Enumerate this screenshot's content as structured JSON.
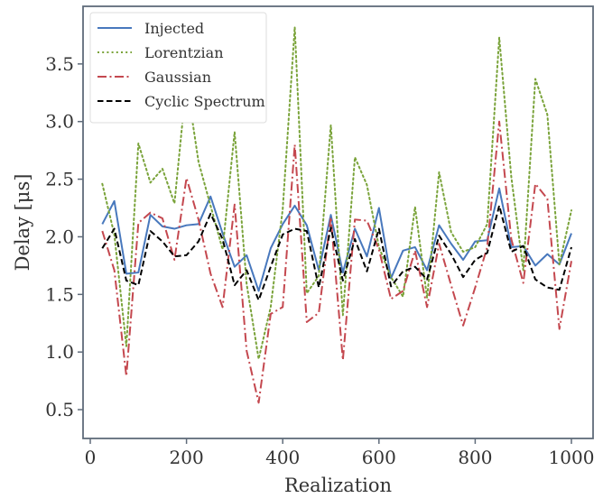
{
  "chart_data": {
    "type": "line",
    "xlabel": "Realization",
    "ylabel": "Delay [μs]",
    "xlim": [
      -15,
      1045
    ],
    "ylim": [
      0.25,
      4.0
    ],
    "xticks": [
      0,
      200,
      400,
      600,
      800,
      1000
    ],
    "yticks": [
      0.5,
      1.0,
      1.5,
      2.0,
      2.5,
      3.0,
      3.5
    ],
    "xtick_labels": [
      "0",
      "200",
      "400",
      "600",
      "800",
      "1000"
    ],
    "ytick_labels": [
      "0.5",
      "1.0",
      "1.5",
      "2.0",
      "2.5",
      "3.0",
      "3.5"
    ],
    "grid": false,
    "legend_position": "top-left",
    "x": [
      25,
      50,
      75,
      100,
      125,
      150,
      175,
      200,
      225,
      250,
      275,
      300,
      325,
      350,
      375,
      400,
      425,
      450,
      475,
      500,
      525,
      550,
      575,
      600,
      625,
      650,
      675,
      700,
      725,
      750,
      775,
      800,
      825,
      850,
      875,
      900,
      925,
      950,
      975,
      1000
    ],
    "series": [
      {
        "name": "Injected",
        "color": "#4878bd",
        "dash": "solid",
        "values": [
          2.11,
          2.31,
          1.68,
          1.69,
          2.19,
          2.09,
          2.07,
          2.1,
          2.11,
          2.35,
          2.03,
          1.74,
          1.84,
          1.53,
          1.9,
          2.11,
          2.27,
          2.1,
          1.71,
          2.19,
          1.69,
          2.07,
          1.83,
          2.25,
          1.64,
          1.88,
          1.91,
          1.71,
          2.1,
          1.94,
          1.8,
          1.96,
          1.97,
          2.42,
          1.91,
          1.92,
          1.75,
          1.85,
          1.76,
          2.03
        ]
      },
      {
        "name": "Lorentzian",
        "color": "#7aa33a",
        "dash": "dotted",
        "values": [
          2.46,
          2.02,
          1.05,
          2.81,
          2.47,
          2.59,
          2.29,
          3.35,
          2.65,
          2.27,
          1.89,
          2.91,
          1.59,
          0.94,
          1.39,
          2.24,
          3.82,
          1.51,
          1.66,
          2.97,
          1.32,
          2.69,
          2.45,
          1.91,
          1.65,
          1.48,
          2.26,
          1.47,
          2.56,
          2.04,
          1.87,
          1.91,
          2.11,
          3.73,
          2.52,
          1.71,
          3.37,
          3.06,
          1.76,
          2.23
        ]
      },
      {
        "name": "Gaussian",
        "color": "#c4484f",
        "dash": "dashdot",
        "values": [
          2.05,
          1.71,
          0.79,
          2.12,
          2.21,
          2.16,
          1.8,
          2.51,
          2.15,
          1.68,
          1.39,
          2.28,
          1.01,
          0.56,
          1.33,
          1.39,
          2.8,
          1.26,
          1.34,
          2.17,
          0.93,
          2.15,
          2.14,
          1.89,
          1.46,
          1.53,
          1.88,
          1.39,
          1.94,
          1.58,
          1.23,
          1.56,
          1.91,
          3.0,
          1.98,
          1.6,
          2.46,
          2.33,
          1.2,
          1.79
        ]
      },
      {
        "name": "Cyclic Spectrum",
        "color": "#000000",
        "dash": "dashed",
        "values": [
          1.9,
          2.07,
          1.62,
          1.58,
          2.05,
          1.96,
          1.83,
          1.84,
          1.96,
          2.2,
          1.98,
          1.58,
          1.71,
          1.45,
          1.74,
          2.02,
          2.07,
          2.05,
          1.56,
          2.08,
          1.62,
          1.98,
          1.7,
          2.07,
          1.57,
          1.7,
          1.74,
          1.63,
          2.01,
          1.85,
          1.65,
          1.8,
          1.86,
          2.27,
          1.87,
          1.92,
          1.63,
          1.56,
          1.54,
          1.91
        ]
      }
    ]
  }
}
